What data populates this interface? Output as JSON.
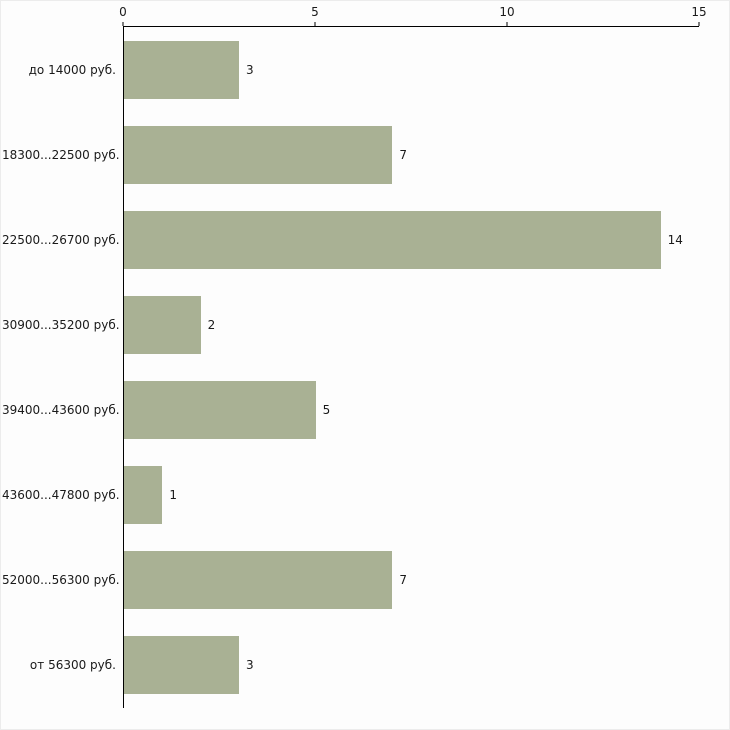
{
  "chart_data": {
    "type": "bar",
    "orientation": "horizontal",
    "title": "",
    "xlabel": "",
    "ylabel": "",
    "categories": [
      "до 14000 руб.",
      "18300...22500 руб.",
      "22500...26700 руб.",
      "30900...35200 руб.",
      "39400...43600 руб.",
      "43600...47800 руб.",
      "52000...56300 руб.",
      "от 56300 руб."
    ],
    "values": [
      3,
      7,
      14,
      2,
      5,
      1,
      7,
      3
    ],
    "x_ticks": [
      0,
      5,
      10,
      15
    ],
    "xlim": [
      0,
      15
    ],
    "grid": false,
    "legend": "none",
    "bar_color": "#a9b194",
    "axis_color": "#000000",
    "text_color": "#1a1a1a",
    "background_color": "#fdfdfd"
  }
}
